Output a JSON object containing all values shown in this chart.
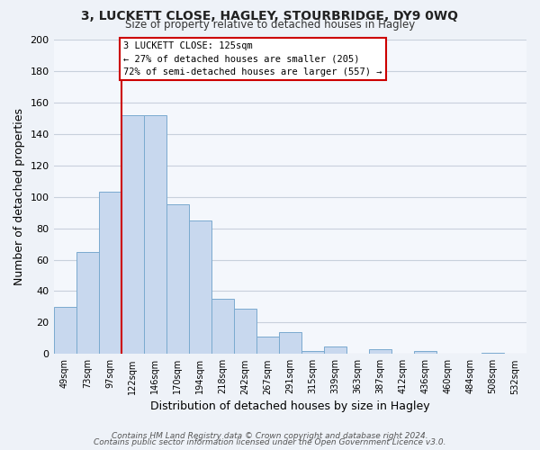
{
  "title": "3, LUCKETT CLOSE, HAGLEY, STOURBRIDGE, DY9 0WQ",
  "subtitle": "Size of property relative to detached houses in Hagley",
  "xlabel": "Distribution of detached houses by size in Hagley",
  "ylabel": "Number of detached properties",
  "bar_color": "#c8d8ee",
  "bar_edge_color": "#7aaacf",
  "categories": [
    "49sqm",
    "73sqm",
    "97sqm",
    "122sqm",
    "146sqm",
    "170sqm",
    "194sqm",
    "218sqm",
    "242sqm",
    "267sqm",
    "291sqm",
    "315sqm",
    "339sqm",
    "363sqm",
    "387sqm",
    "412sqm",
    "436sqm",
    "460sqm",
    "484sqm",
    "508sqm",
    "532sqm"
  ],
  "values": [
    30,
    65,
    103,
    152,
    152,
    95,
    85,
    35,
    29,
    11,
    14,
    2,
    5,
    0,
    3,
    0,
    2,
    0,
    0,
    1,
    0
  ],
  "ylim": [
    0,
    200
  ],
  "yticks": [
    0,
    20,
    40,
    60,
    80,
    100,
    120,
    140,
    160,
    180,
    200
  ],
  "vline_color": "#cc0000",
  "annotation_title": "3 LUCKETT CLOSE: 125sqm",
  "annotation_line1": "← 27% of detached houses are smaller (205)",
  "annotation_line2": "72% of semi-detached houses are larger (557) →",
  "annotation_box_color": "#ffffff",
  "annotation_box_edge": "#cc0000",
  "footer1": "Contains HM Land Registry data © Crown copyright and database right 2024.",
  "footer2": "Contains public sector information licensed under the Open Government Licence v3.0.",
  "background_color": "#eef2f8",
  "plot_background": "#f4f7fc",
  "grid_color": "#c8d0dc"
}
